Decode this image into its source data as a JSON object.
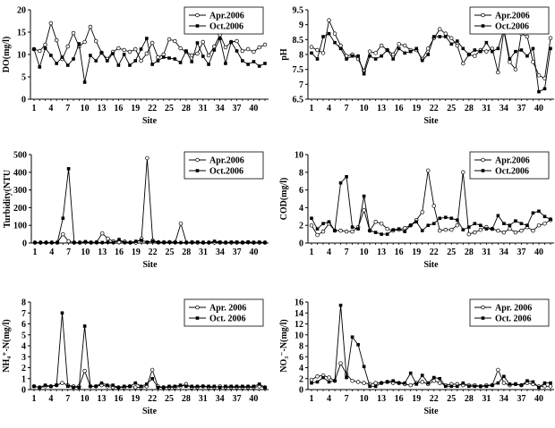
{
  "chart_data": [
    {
      "type": "line",
      "ylabel": "DO(mg/l)",
      "xlabel": "Site",
      "ylim": [
        0,
        20
      ],
      "yticks": [
        "0",
        "5",
        "10",
        "15",
        "20"
      ],
      "xticks": [
        "1",
        "4",
        "7",
        "10",
        "13",
        "16",
        "19",
        "22",
        "25",
        "28",
        "31",
        "34",
        "37",
        "40"
      ],
      "legend_position": "top-right",
      "series": [
        {
          "name": "Apr.2006",
          "marker": "open-circle",
          "values": [
            11.2,
            10.8,
            12.2,
            17.0,
            13.2,
            9.0,
            11.8,
            14.8,
            11.8,
            12.8,
            16.2,
            13.0,
            10.4,
            9.0,
            10.6,
            11.4,
            11.0,
            10.6,
            11.2,
            8.6,
            10.2,
            12.6,
            9.4,
            10.0,
            13.4,
            13.0,
            11.4,
            10.6,
            9.8,
            10.2,
            12.8,
            9.8,
            11.8,
            14.4,
            11.6,
            12.8,
            13.0,
            10.8,
            11.2,
            10.6,
            11.6,
            12.2
          ]
        },
        {
          "name": "Oct.2006",
          "marker": "filled-square",
          "values": [
            11.2,
            7.2,
            11.4,
            9.8,
            8.0,
            9.4,
            7.6,
            9.0,
            12.4,
            3.8,
            9.8,
            8.6,
            10.4,
            8.6,
            10.2,
            7.6,
            10.0,
            7.6,
            8.6,
            11.2,
            13.6,
            7.8,
            8.6,
            9.4,
            9.2,
            9.0,
            8.2,
            10.8,
            8.4,
            12.6,
            9.6,
            7.8,
            11.0,
            13.6,
            8.0,
            12.8,
            10.8,
            8.6,
            7.8,
            8.4,
            7.4,
            8.0
          ]
        }
      ]
    },
    {
      "type": "line",
      "ylabel": "pH",
      "xlabel": "Site",
      "ylim": [
        6.5,
        9.5
      ],
      "yticks": [
        "6.5",
        "7",
        "7.5",
        "8",
        "8.5",
        "9",
        "9.5"
      ],
      "xticks": [
        "1",
        "4",
        "7",
        "10",
        "13",
        "16",
        "19",
        "22",
        "25",
        "28",
        "31",
        "34",
        "37",
        "40"
      ],
      "legend_position": "top-right",
      "series": [
        {
          "name": "Apr.2006",
          "marker": "open-circle",
          "values": [
            8.25,
            8.15,
            8.05,
            9.15,
            8.7,
            8.3,
            7.95,
            8.0,
            7.85,
            7.45,
            8.1,
            8.05,
            8.3,
            8.15,
            8.0,
            8.35,
            8.3,
            8.15,
            8.15,
            7.85,
            8.2,
            8.55,
            8.85,
            8.7,
            8.55,
            8.3,
            7.7,
            8.0,
            7.95,
            8.15,
            8.1,
            8.2,
            7.4,
            8.8,
            7.75,
            7.5,
            8.7,
            8.6,
            7.75,
            7.3,
            7.2,
            8.55
          ]
        },
        {
          "name": "Oct.2006",
          "marker": "filled-square",
          "values": [
            8.05,
            7.85,
            8.6,
            8.7,
            8.4,
            8.2,
            7.85,
            7.95,
            7.95,
            7.35,
            7.95,
            7.85,
            7.95,
            8.15,
            7.85,
            8.2,
            8.05,
            8.1,
            8.2,
            7.8,
            8.0,
            8.6,
            8.6,
            8.6,
            8.35,
            8.45,
            8.2,
            8.0,
            8.15,
            8.1,
            8.4,
            8.1,
            8.2,
            8.85,
            7.85,
            8.1,
            8.15,
            7.95,
            8.2,
            6.75,
            6.85,
            8.2
          ]
        }
      ]
    },
    {
      "type": "line",
      "ylabel": "Turbidity(NTU",
      "xlabel": "Site",
      "ylim": [
        0,
        500
      ],
      "yticks": [
        "0",
        "100",
        "200",
        "300",
        "400",
        "500"
      ],
      "xticks": [
        "1",
        "4",
        "7",
        "10",
        "13",
        "16",
        "19",
        "22",
        "25",
        "28",
        "31",
        "34",
        "37",
        "40"
      ],
      "legend_position": "top-right",
      "series": [
        {
          "name": "Apr.2006",
          "marker": "open-circle",
          "values": [
            3,
            3,
            3,
            3,
            3,
            50,
            10,
            3,
            3,
            5,
            3,
            5,
            55,
            25,
            10,
            5,
            8,
            3,
            3,
            25,
            480,
            15,
            5,
            5,
            5,
            5,
            110,
            3,
            5,
            3,
            3,
            3,
            3,
            3,
            3,
            3,
            3,
            3,
            5,
            3,
            3,
            3
          ]
        },
        {
          "name": "Oct.2006",
          "marker": "filled-square",
          "values": [
            3,
            3,
            3,
            3,
            3,
            140,
            420,
            3,
            3,
            8,
            3,
            3,
            3,
            5,
            3,
            20,
            3,
            3,
            10,
            15,
            5,
            10,
            3,
            3,
            5,
            3,
            3,
            3,
            3,
            5,
            3,
            3,
            10,
            5,
            3,
            5,
            5,
            3,
            5,
            3,
            5,
            3
          ]
        }
      ]
    },
    {
      "type": "line",
      "ylabel": "COD(mg/l)",
      "xlabel": "Site",
      "ylim": [
        0,
        10
      ],
      "yticks": [
        "0",
        "2",
        "4",
        "6",
        "8",
        "10"
      ],
      "xticks": [
        "1",
        "4",
        "7",
        "10",
        "13",
        "16",
        "19",
        "22",
        "25",
        "28",
        "31",
        "34",
        "37",
        "40"
      ],
      "legend_position": "top-right",
      "series": [
        {
          "name": "Apr.2006",
          "marker": "open-circle",
          "values": [
            2.0,
            0.9,
            1.3,
            2.2,
            1.4,
            1.4,
            1.3,
            1.3,
            1.8,
            3.7,
            1.4,
            2.4,
            2.2,
            1.6,
            1.4,
            1.5,
            1.7,
            2.0,
            2.6,
            3.5,
            8.2,
            4.2,
            1.4,
            1.5,
            1.5,
            2.0,
            8.0,
            1.0,
            1.2,
            1.5,
            1.8,
            1.6,
            1.4,
            1.2,
            1.6,
            1.2,
            1.4,
            1.8,
            1.4,
            2.0,
            2.2,
            2.6
          ]
        },
        {
          "name": "Oct.2006",
          "marker": "filled-square",
          "values": [
            2.8,
            1.6,
            2.2,
            2.4,
            1.4,
            6.8,
            7.5,
            1.8,
            1.6,
            5.3,
            1.4,
            1.2,
            1.0,
            1.0,
            1.5,
            1.6,
            1.3,
            2.0,
            2.4,
            1.4,
            2.0,
            2.2,
            2.8,
            2.9,
            2.8,
            2.6,
            1.5,
            1.8,
            2.2,
            2.0,
            1.6,
            1.6,
            3.1,
            2.2,
            2.0,
            2.5,
            2.2,
            2.0,
            3.4,
            3.6,
            3.0,
            2.7
          ]
        }
      ]
    },
    {
      "type": "line",
      "ylabel": "NH₄⁺-N(mg/l)",
      "xlabel": "Site",
      "ylim": [
        0,
        8
      ],
      "yticks": [
        "0",
        "1",
        "2",
        "3",
        "4",
        "5",
        "6",
        "7",
        "8"
      ],
      "xticks": [
        "1",
        "4",
        "7",
        "10",
        "13",
        "16",
        "19",
        "22",
        "25",
        "28",
        "31",
        "34",
        "37",
        "40"
      ],
      "legend_position": "top-right",
      "series": [
        {
          "name": "Apr. 2006",
          "marker": "open-circle",
          "values": [
            0.3,
            0.2,
            0.3,
            0.3,
            0.4,
            0.6,
            0.4,
            0.3,
            0.3,
            1.7,
            0.3,
            0.3,
            0.4,
            0.3,
            0.2,
            0.2,
            0.2,
            0.3,
            0.2,
            0.2,
            0.3,
            1.8,
            0.3,
            0.2,
            0.2,
            0.2,
            0.3,
            0.5,
            0.2,
            0.2,
            0.3,
            0.2,
            0.2,
            0.3,
            0.2,
            0.2,
            0.2,
            0.2,
            0.2,
            0.2,
            0.3,
            0.2
          ]
        },
        {
          "name": "Oct. 2006",
          "marker": "filled-square",
          "values": [
            0.3,
            0.2,
            0.4,
            0.3,
            0.4,
            7.0,
            0.3,
            0.2,
            0.2,
            5.8,
            0.3,
            0.3,
            0.6,
            0.4,
            0.4,
            0.2,
            0.3,
            0.3,
            0.6,
            0.3,
            0.5,
            1.0,
            0.2,
            0.2,
            0.3,
            0.3,
            0.4,
            0.3,
            0.3,
            0.3,
            0.3,
            0.3,
            0.3,
            0.2,
            0.3,
            0.3,
            0.3,
            0.3,
            0.3,
            0.3,
            0.5,
            0.2
          ]
        }
      ]
    },
    {
      "type": "line",
      "ylabel": "NO₃⁻-N(mg/l)",
      "xlabel": "Site",
      "ylim": [
        0,
        16
      ],
      "yticks": [
        "0",
        "2",
        "4",
        "6",
        "8",
        "10",
        "12",
        "14",
        "16"
      ],
      "xticks": [
        "1",
        "4",
        "7",
        "10",
        "13",
        "16",
        "19",
        "22",
        "25",
        "28",
        "31",
        "34",
        "37",
        "40"
      ],
      "legend_position": "top-right",
      "series": [
        {
          "name": "Apr. 2006",
          "marker": "open-circle",
          "values": [
            1.8,
            2.4,
            2.6,
            2.2,
            1.6,
            4.8,
            2.8,
            1.6,
            1.4,
            1.2,
            1.0,
            1.2,
            1.2,
            1.4,
            1.2,
            1.2,
            1.0,
            0.8,
            1.2,
            1.4,
            1.0,
            1.6,
            1.2,
            0.8,
            1.0,
            1.0,
            0.8,
            0.8,
            0.8,
            0.6,
            0.8,
            0.8,
            3.6,
            1.2,
            0.8,
            1.0,
            0.8,
            1.2,
            1.0,
            0.6,
            0.6,
            0.6
          ]
        },
        {
          "name": "Oct. 2006",
          "marker": "filled-square",
          "values": [
            1.2,
            1.4,
            2.2,
            1.4,
            1.6,
            15.4,
            2.2,
            9.6,
            8.2,
            4.2,
            0.6,
            0.6,
            1.2,
            1.4,
            1.6,
            1.2,
            1.2,
            3.0,
            1.0,
            2.6,
            1.2,
            2.2,
            2.0,
            0.6,
            0.6,
            0.6,
            1.2,
            0.6,
            0.6,
            0.6,
            0.6,
            0.8,
            1.2,
            2.4,
            1.0,
            1.0,
            0.8,
            1.6,
            1.4,
            0.4,
            1.2,
            1.2
          ]
        }
      ]
    }
  ]
}
